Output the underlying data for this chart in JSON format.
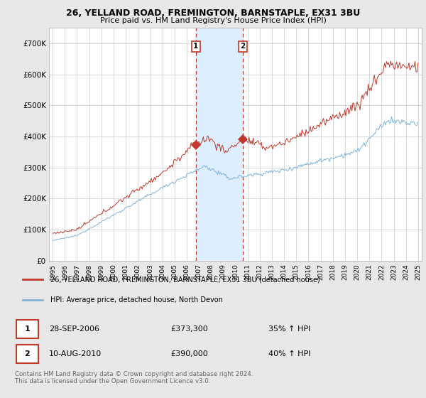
{
  "title_line1": "26, YELLAND ROAD, FREMINGTON, BARNSTAPLE, EX31 3BU",
  "title_line2": "Price paid vs. HM Land Registry's House Price Index (HPI)",
  "ylim": [
    0,
    750000
  ],
  "yticks": [
    0,
    100000,
    200000,
    300000,
    400000,
    500000,
    600000,
    700000
  ],
  "ytick_labels": [
    "£0",
    "£100K",
    "£200K",
    "£300K",
    "£400K",
    "£500K",
    "£600K",
    "£700K"
  ],
  "hpi_color": "#7fb3d9",
  "price_color": "#c0392b",
  "highlight_color": "#ddeeff",
  "vline_color": "#c0392b",
  "background_color": "#e8e8e8",
  "plot_bg_color": "#ffffff",
  "grid_color": "#cccccc",
  "sale1_year": 2006.75,
  "sale1_label": "1",
  "sale1_price": 373300,
  "sale1_date": "28-SEP-2006",
  "sale1_price_str": "£373,300",
  "sale1_pct": "35% ↑ HPI",
  "sale2_year": 2010.6,
  "sale2_label": "2",
  "sale2_price": 390000,
  "sale2_date": "10-AUG-2010",
  "sale2_price_str": "£390,000",
  "sale2_pct": "40% ↑ HPI",
  "legend_line1": "26, YELLAND ROAD, FREMINGTON, BARNSTAPLE, EX31 3BU (detached house)",
  "legend_line2": "HPI: Average price, detached house, North Devon",
  "footnote": "Contains HM Land Registry data © Crown copyright and database right 2024.\nThis data is licensed under the Open Government Licence v3.0.",
  "start_year": 1995,
  "end_year": 2025
}
